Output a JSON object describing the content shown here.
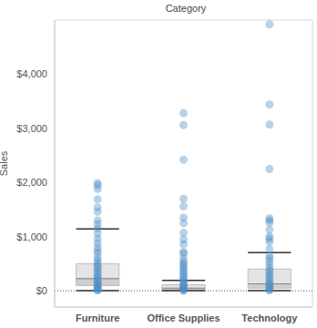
{
  "chart_data": {
    "type": "box",
    "title": "Category",
    "y_label": "Sales",
    "categories": [
      "Furniture",
      "Office Supplies",
      "Technology"
    ],
    "ylim": [
      -300,
      5000
    ],
    "yticks": [
      {
        "value": 0,
        "label": "$0"
      },
      {
        "value": 1000,
        "label": "$1,000"
      },
      {
        "value": 2000,
        "label": "$2,000"
      },
      {
        "value": 3000,
        "label": "$3,000"
      },
      {
        "value": 4000,
        "label": "$4,000"
      }
    ],
    "color": "#4e8fc6",
    "boxes": [
      {
        "whisker_low": 2,
        "q1": 96,
        "median": 225,
        "q3": 498,
        "whisker_high": 1141
      },
      {
        "whisker_low": 1,
        "q1": 16,
        "median": 48,
        "q3": 112,
        "whisker_high": 193
      },
      {
        "whisker_low": 2,
        "q1": 48,
        "median": 128,
        "q3": 402,
        "whisker_high": 707
      }
    ],
    "points": [
      [
        1990,
        1950,
        1880,
        1690,
        1540,
        1460,
        1300,
        1230,
        1150,
        1060,
        960,
        880,
        800,
        740,
        690,
        610,
        560,
        510,
        470,
        430,
        390,
        350,
        310,
        270,
        240,
        200,
        170,
        140,
        110,
        90,
        70,
        50,
        30,
        15,
        5
      ],
      [
        3280,
        3060,
        2420,
        1700,
        1560,
        1350,
        1250,
        1070,
        950,
        860,
        720,
        690,
        600,
        540,
        500,
        460,
        420,
        380,
        340,
        300,
        260,
        220,
        190,
        160,
        130,
        100,
        80,
        60,
        40,
        25,
        10,
        3
      ],
      [
        4920,
        3440,
        3070,
        2250,
        1340,
        1300,
        1260,
        1130,
        1000,
        960,
        900,
        770,
        640,
        600,
        540,
        480,
        420,
        370,
        320,
        280,
        230,
        190,
        150,
        120,
        90,
        60,
        40,
        20,
        8
      ]
    ]
  }
}
